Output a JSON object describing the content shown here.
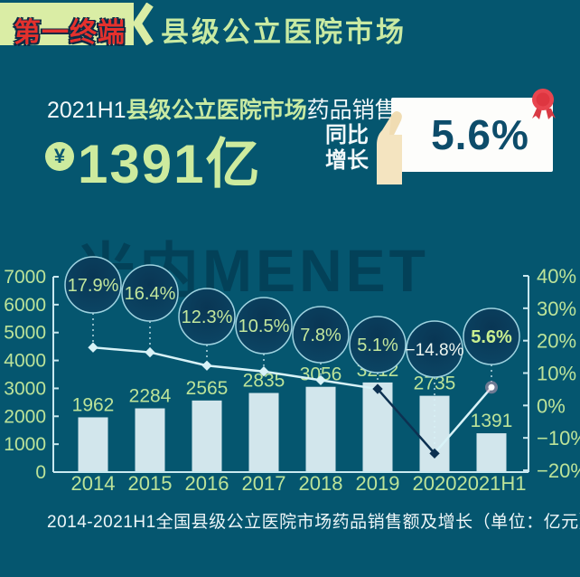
{
  "header": {
    "badge": "第一终端",
    "title": "县级公立医院市场"
  },
  "stats": {
    "line1_prefix": "2021H1",
    "line1_highlight": "县级公立医院市场",
    "line1_suffix": "药品销售额达",
    "currency_symbol": "¥",
    "big_value": "1391亿",
    "growth_label_line1": "同比",
    "growth_label_line2": "增长",
    "growth_value": "5.6%"
  },
  "watermark": "米内MENET",
  "palette": {
    "background": "#05566F",
    "accent_green": "#CDEB9E",
    "label_green": "#BCE399",
    "badge_bg": "#DAEDA5",
    "badge_red": "#E4312D",
    "ribbon_red": "#E8454F",
    "card_bg": "#FDFDFB",
    "card_text": "#0D4C6A",
    "bar_fill": "#D2E6EC",
    "axis_line": "#C9E8EF",
    "line_light": "#D8F2F7",
    "line_dark": "#0D3151",
    "bubble_fill": "#0A3C5C",
    "bubble_stroke": "#9FD3E0",
    "bubble_text": "#C3E79D",
    "bubble_text_neg": "#EEF6F0",
    "bubble_text_hl": "#C9EF8F",
    "marker_pink": "#F2A8C0"
  },
  "chart_data": {
    "type": "bar+line",
    "categories": [
      "2014",
      "2015",
      "2016",
      "2017",
      "2018",
      "2019",
      "2020",
      "2021H1"
    ],
    "series": [
      {
        "name": "药品销售额(亿元)",
        "type": "bar",
        "values": [
          1962,
          2284,
          2565,
          2835,
          3056,
          3212,
          2735,
          1391
        ]
      },
      {
        "name": "同比增长(%)",
        "type": "line",
        "values": [
          17.9,
          16.4,
          12.3,
          10.5,
          7.8,
          5.1,
          -14.8,
          5.6
        ]
      }
    ],
    "left_axis": {
      "min": 0,
      "max": 7000,
      "step": 1000
    },
    "right_axis": {
      "min": -20,
      "max": 40,
      "step": 10,
      "suffix": "%"
    },
    "grid": false,
    "legend": "none",
    "caption": "2014-2021H1全国县级公立医院市场药品销售额及增长（单位：亿元）"
  }
}
